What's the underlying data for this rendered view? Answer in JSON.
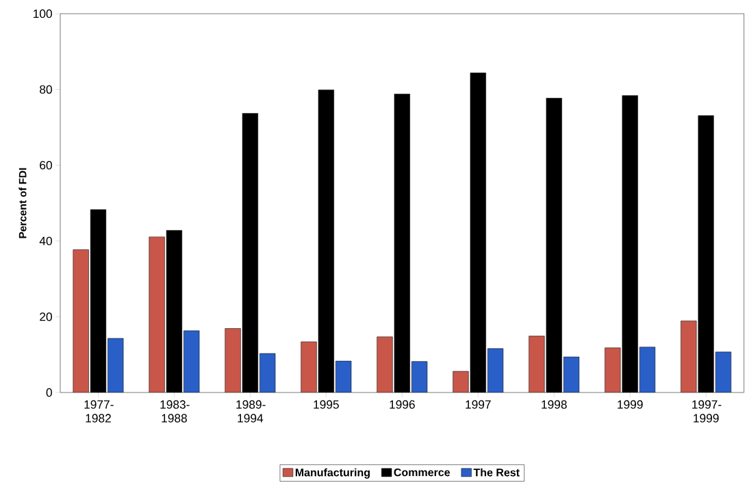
{
  "chart_data": {
    "type": "bar",
    "ylabel": "Percent of FDI",
    "categories": [
      "1977-1982",
      "1983-1988",
      "1989-1994",
      "1995",
      "1996",
      "1997",
      "1998",
      "1999",
      "1997-1999"
    ],
    "series": [
      {
        "name": "Manufacturing",
        "color": "#c8574a",
        "values": [
          37.7,
          41.1,
          16.9,
          13.4,
          14.7,
          5.6,
          14.9,
          11.8,
          18.9
        ]
      },
      {
        "name": "Commerce",
        "color": "#000000",
        "values": [
          48.3,
          42.8,
          73.7,
          79.9,
          78.8,
          84.4,
          77.7,
          78.4,
          73.1
        ]
      },
      {
        "name": "The Rest",
        "color": "#2a5fc8",
        "values": [
          14.3,
          16.3,
          10.3,
          8.3,
          8.2,
          11.6,
          9.4,
          12.0,
          10.7
        ]
      }
    ],
    "ylim": [
      0,
      100
    ],
    "yticks": [
      0,
      20,
      40,
      60,
      80,
      100
    ],
    "grid": false,
    "legend": "bottom"
  }
}
